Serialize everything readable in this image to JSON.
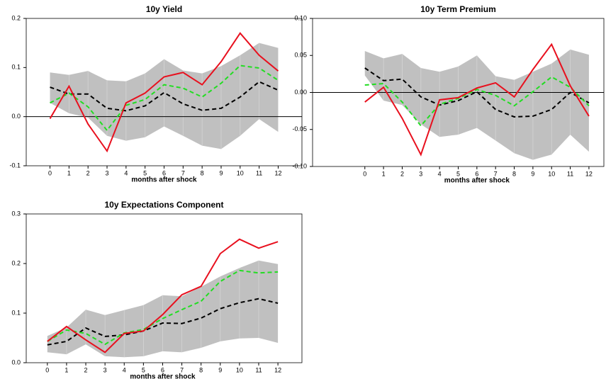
{
  "chart_data": [
    {
      "type": "line",
      "title": "10y Yield",
      "xlabel": "months after shock",
      "x": [
        0,
        1,
        2,
        3,
        4,
        5,
        6,
        7,
        8,
        9,
        10,
        11,
        12
      ],
      "xticks": [
        0,
        1,
        2,
        3,
        4,
        5,
        6,
        7,
        8,
        9,
        10,
        11,
        12
      ],
      "xlim": [
        -1.25,
        13.25
      ],
      "ylim": [
        -0.1,
        0.2
      ],
      "yticks": [
        -0.1,
        {
          "value": 0,
          "label": "0.0"
        },
        0.1,
        0.2
      ],
      "reference_line": 0,
      "band": {
        "color": "#c0c0c0",
        "lower": [
          0.028,
          0.007,
          -0.002,
          -0.039,
          -0.049,
          -0.042,
          -0.02,
          -0.039,
          -0.059,
          -0.066,
          -0.039,
          -0.005,
          -0.031
        ],
        "upper": [
          0.09,
          0.085,
          0.093,
          0.074,
          0.072,
          0.088,
          0.117,
          0.094,
          0.088,
          0.103,
          0.125,
          0.15,
          0.14
        ]
      },
      "series": [
        {
          "color": "#000000",
          "dash": true,
          "values": [
            0.06,
            0.046,
            0.046,
            0.017,
            0.012,
            0.022,
            0.049,
            0.026,
            0.013,
            0.017,
            0.04,
            0.071,
            0.054
          ]
        },
        {
          "color": "#22dd22",
          "dash": true,
          "values": [
            0.028,
            0.048,
            0.02,
            -0.028,
            0.023,
            0.035,
            0.065,
            0.058,
            0.04,
            0.068,
            0.104,
            0.099,
            0.074
          ]
        },
        {
          "color": "#e8101e",
          "dash": false,
          "values": [
            -0.004,
            0.062,
            -0.015,
            -0.07,
            0.028,
            0.048,
            0.081,
            0.09,
            0.065,
            0.112,
            0.17,
            0.125,
            0.093
          ]
        }
      ]
    },
    {
      "type": "line",
      "title": "10y Term Premium",
      "xlabel": "months after shock",
      "x": [
        0,
        1,
        2,
        3,
        4,
        5,
        6,
        7,
        8,
        9,
        10,
        11,
        12
      ],
      "xticks": [
        0,
        1,
        2,
        3,
        4,
        5,
        6,
        7,
        8,
        9,
        10,
        11,
        12
      ],
      "xlim": [
        -2.8,
        12.8
      ],
      "ylim": [
        -0.1,
        0.1
      ],
      "yticks": [
        {
          "value": -0.1,
          "label": "-0.10"
        },
        -0.05,
        {
          "value": 0,
          "label": "0.00"
        },
        0.05,
        {
          "value": 0.1,
          "label": "0.10"
        }
      ],
      "reference_line": 0,
      "band": {
        "color": "#c0c0c0",
        "lower": [
          0.023,
          -0.011,
          -0.017,
          -0.043,
          -0.06,
          -0.057,
          -0.048,
          -0.065,
          -0.082,
          -0.091,
          -0.084,
          -0.057,
          -0.08
        ],
        "upper": [
          0.056,
          0.046,
          0.052,
          0.033,
          0.028,
          0.035,
          0.05,
          0.022,
          0.017,
          0.028,
          0.039,
          0.058,
          0.051
        ]
      },
      "series": [
        {
          "color": "#000000",
          "dash": true,
          "values": [
            0.033,
            0.016,
            0.018,
            -0.006,
            -0.017,
            -0.011,
            0.001,
            -0.023,
            -0.033,
            -0.032,
            -0.023,
            0,
            -0.014
          ]
        },
        {
          "color": "#22dd22",
          "dash": true,
          "values": [
            0.01,
            0.012,
            -0.013,
            -0.045,
            -0.016,
            -0.008,
            0.004,
            -0.004,
            -0.018,
            0.001,
            0.021,
            0.007,
            -0.018
          ]
        },
        {
          "color": "#e8101e",
          "dash": false,
          "values": [
            -0.013,
            0.007,
            -0.035,
            -0.084,
            -0.01,
            -0.007,
            0.006,
            0.013,
            -0.006,
            0.031,
            0.065,
            0.009,
            -0.032
          ]
        }
      ]
    },
    {
      "type": "line",
      "title": "10y Expectations Component",
      "xlabel": "months after shock",
      "x": [
        0,
        1,
        2,
        3,
        4,
        5,
        6,
        7,
        8,
        9,
        10,
        11,
        12
      ],
      "xticks": [
        0,
        1,
        2,
        3,
        4,
        5,
        6,
        7,
        8,
        9,
        10,
        11,
        12
      ],
      "xlim": [
        -1.1,
        13.25
      ],
      "ylim": [
        0,
        0.3
      ],
      "yticks": [
        {
          "value": 0,
          "label": "0.0"
        },
        0.1,
        0.2,
        0.3
      ],
      "band": {
        "color": "#c0c0c0",
        "lower": [
          0.021,
          0.017,
          0.037,
          0.013,
          0.011,
          0.013,
          0.023,
          0.021,
          0.03,
          0.043,
          0.049,
          0.05,
          0.04
        ],
        "upper": [
          0.054,
          0.071,
          0.107,
          0.096,
          0.106,
          0.116,
          0.136,
          0.134,
          0.153,
          0.174,
          0.191,
          0.206,
          0.199
        ]
      },
      "series": [
        {
          "color": "#000000",
          "dash": true,
          "values": [
            0.036,
            0.043,
            0.07,
            0.053,
            0.056,
            0.064,
            0.08,
            0.079,
            0.09,
            0.109,
            0.121,
            0.129,
            0.12
          ]
        },
        {
          "color": "#22dd22",
          "dash": true,
          "values": [
            0.043,
            0.066,
            0.059,
            0.037,
            0.06,
            0.067,
            0.089,
            0.107,
            0.124,
            0.164,
            0.186,
            0.181,
            0.183
          ]
        },
        {
          "color": "#e8101e",
          "dash": false,
          "values": [
            0.043,
            0.073,
            0.046,
            0.021,
            0.059,
            0.064,
            0.097,
            0.137,
            0.154,
            0.22,
            0.249,
            0.231,
            0.244
          ]
        }
      ]
    }
  ]
}
